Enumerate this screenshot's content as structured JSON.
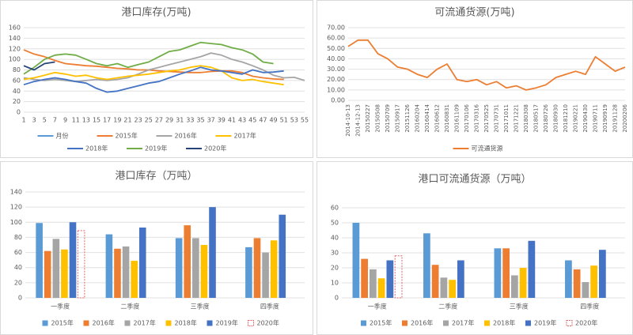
{
  "chart_data": [
    {
      "type": "line",
      "title": "港口库存(万吨)",
      "x": [
        1,
        3,
        5,
        7,
        9,
        11,
        13,
        15,
        17,
        19,
        21,
        23,
        25,
        27,
        29,
        31,
        33,
        35,
        37,
        39,
        41,
        43,
        45,
        47,
        49,
        51,
        53,
        55
      ],
      "xlim": [
        1,
        55
      ],
      "xticks": [
        1,
        3,
        5,
        7,
        9,
        11,
        13,
        15,
        17,
        19,
        21,
        23,
        25,
        27,
        29,
        31,
        33,
        35,
        37,
        39,
        41,
        43,
        45,
        47,
        49,
        51,
        53,
        55
      ],
      "ylim": [
        0,
        160
      ],
      "yticks": [
        0,
        20,
        40,
        60,
        80,
        100,
        120,
        140,
        160
      ],
      "grid": true,
      "legend": "bottom",
      "series": [
        {
          "name": "月份",
          "color": "#5b9bd5",
          "values": [
            null,
            null,
            null,
            null,
            null,
            null,
            null,
            null,
            null,
            null,
            null,
            null,
            null,
            null,
            null,
            null,
            null,
            null,
            null,
            null,
            null,
            null,
            null,
            null,
            null,
            null,
            null,
            null
          ]
        },
        {
          "name": "2015年",
          "color": "#ed7d31",
          "values": [
            118,
            110,
            105,
            98,
            92,
            90,
            88,
            87,
            85,
            83,
            82,
            80,
            80,
            78,
            77,
            76,
            75,
            75,
            77,
            78,
            78,
            75,
            68,
            65,
            63,
            62,
            null,
            null
          ]
        },
        {
          "name": "2016年",
          "color": "#a5a5a5",
          "values": [
            65,
            62,
            60,
            62,
            60,
            58,
            60,
            62,
            60,
            62,
            65,
            72,
            80,
            85,
            90,
            95,
            100,
            105,
            112,
            108,
            100,
            95,
            88,
            80,
            70,
            65,
            66,
            60
          ]
        },
        {
          "name": "2017年",
          "color": "#ffc000",
          "values": [
            62,
            65,
            70,
            75,
            72,
            68,
            70,
            65,
            62,
            65,
            68,
            70,
            72,
            75,
            78,
            80,
            85,
            88,
            85,
            78,
            65,
            60,
            62,
            58,
            55,
            52,
            null,
            null
          ]
        },
        {
          "name": "2018年",
          "color": "#4472c4",
          "values": [
            52,
            58,
            62,
            65,
            62,
            58,
            55,
            45,
            38,
            40,
            45,
            50,
            55,
            58,
            65,
            72,
            78,
            85,
            80,
            78,
            75,
            72,
            80,
            75,
            76,
            78,
            null,
            null
          ]
        },
        {
          "name": "2019年",
          "color": "#70ad47",
          "values": [
            72,
            85,
            100,
            108,
            110,
            108,
            100,
            92,
            88,
            92,
            85,
            90,
            95,
            105,
            115,
            118,
            125,
            132,
            130,
            128,
            122,
            118,
            110,
            95,
            92,
            null,
            null,
            null
          ]
        },
        {
          "name": "2020年",
          "color": "#264478",
          "values": [
            88,
            80,
            92,
            95,
            null,
            null,
            null,
            null,
            null,
            null,
            null,
            null,
            null,
            null,
            null,
            null,
            null,
            null,
            null,
            null,
            null,
            null,
            null,
            null,
            null,
            null,
            null,
            null
          ]
        }
      ]
    },
    {
      "type": "line",
      "title": "可流通货源(万吨)",
      "categories": [
        "2014-10-13",
        "2014-12-13",
        "20150227",
        "20150508",
        "20150709",
        "20150917",
        "20151126",
        "20160204",
        "20160414",
        "20160612",
        "20160831",
        "20161109",
        "20170106",
        "20170316",
        "20170525",
        "20170731",
        "20171011",
        "20171221",
        "20180308",
        "20180517",
        "20180726",
        "20180930",
        "20181210",
        "20190221",
        "20190430",
        "20190711",
        "20190919",
        "20191128",
        "20200206"
      ],
      "ylim": [
        0,
        70
      ],
      "yticks": [
        {
          "value": 0,
          "label": "0.00"
        },
        {
          "value": 10,
          "label": "10.00"
        },
        {
          "value": 20,
          "label": "20.00"
        },
        {
          "value": 30,
          "label": "30.00"
        },
        {
          "value": 40,
          "label": "40.00"
        },
        {
          "value": 50,
          "label": "50.00"
        },
        {
          "value": 60,
          "label": "60.00"
        },
        {
          "value": 70,
          "label": "70.00"
        }
      ],
      "grid": true,
      "legend": "bottom",
      "series": [
        {
          "name": "可流通货源",
          "color": "#ed7d31",
          "values": [
            52,
            58,
            58,
            45,
            40,
            32,
            30,
            25,
            22,
            30,
            35,
            20,
            18,
            20,
            15,
            18,
            12,
            14,
            10,
            12,
            15,
            22,
            25,
            28,
            25,
            42,
            35,
            28,
            32
          ]
        }
      ]
    },
    {
      "type": "bar",
      "title": "港口库存（万吨）",
      "categories": [
        "一季度",
        "二季度",
        "三季度",
        "四季度"
      ],
      "ylim": [
        0,
        140
      ],
      "yticks": [
        0,
        20,
        40,
        60,
        80,
        100,
        120,
        140
      ],
      "grid": true,
      "legend": "bottom",
      "series": [
        {
          "name": "2015年",
          "color": "#5b9bd5",
          "values": [
            99,
            84,
            79,
            67
          ]
        },
        {
          "name": "2016年",
          "color": "#ed7d31",
          "values": [
            62,
            65,
            96,
            79
          ]
        },
        {
          "name": "2017年",
          "color": "#a5a5a5",
          "values": [
            78,
            68,
            79,
            60
          ]
        },
        {
          "name": "2018年",
          "color": "#ffc000",
          "values": [
            64,
            49,
            70,
            76
          ]
        },
        {
          "name": "2019年",
          "color": "#4472c4",
          "values": [
            100,
            93,
            120,
            110
          ]
        },
        {
          "name": "2020年",
          "color": "#e06666",
          "border": "dashed",
          "values": [
            89,
            null,
            null,
            null
          ]
        }
      ]
    },
    {
      "type": "bar",
      "title": "港口可流通货源（万吨）",
      "categories": [
        "一季度",
        "二季度",
        "三季度",
        "四季度"
      ],
      "ylim": [
        0,
        60
      ],
      "yticks": [
        0,
        10,
        20,
        30,
        40,
        50,
        60
      ],
      "grid": true,
      "legend": "bottom",
      "series": [
        {
          "name": "2015年",
          "color": "#5b9bd5",
          "values": [
            50,
            43,
            33,
            25
          ]
        },
        {
          "name": "2016年",
          "color": "#ed7d31",
          "values": [
            26,
            22,
            33,
            19
          ]
        },
        {
          "name": "2017年",
          "color": "#a5a5a5",
          "values": [
            19,
            13.5,
            15,
            10.5
          ]
        },
        {
          "name": "2018年",
          "color": "#ffc000",
          "values": [
            13,
            12,
            20,
            21.5
          ]
        },
        {
          "name": "2019年",
          "color": "#4472c4",
          "values": [
            25,
            25,
            38,
            32
          ]
        },
        {
          "name": "2020年",
          "color": "#e06666",
          "border": "dashed",
          "values": [
            28,
            null,
            null,
            null
          ]
        }
      ]
    }
  ]
}
